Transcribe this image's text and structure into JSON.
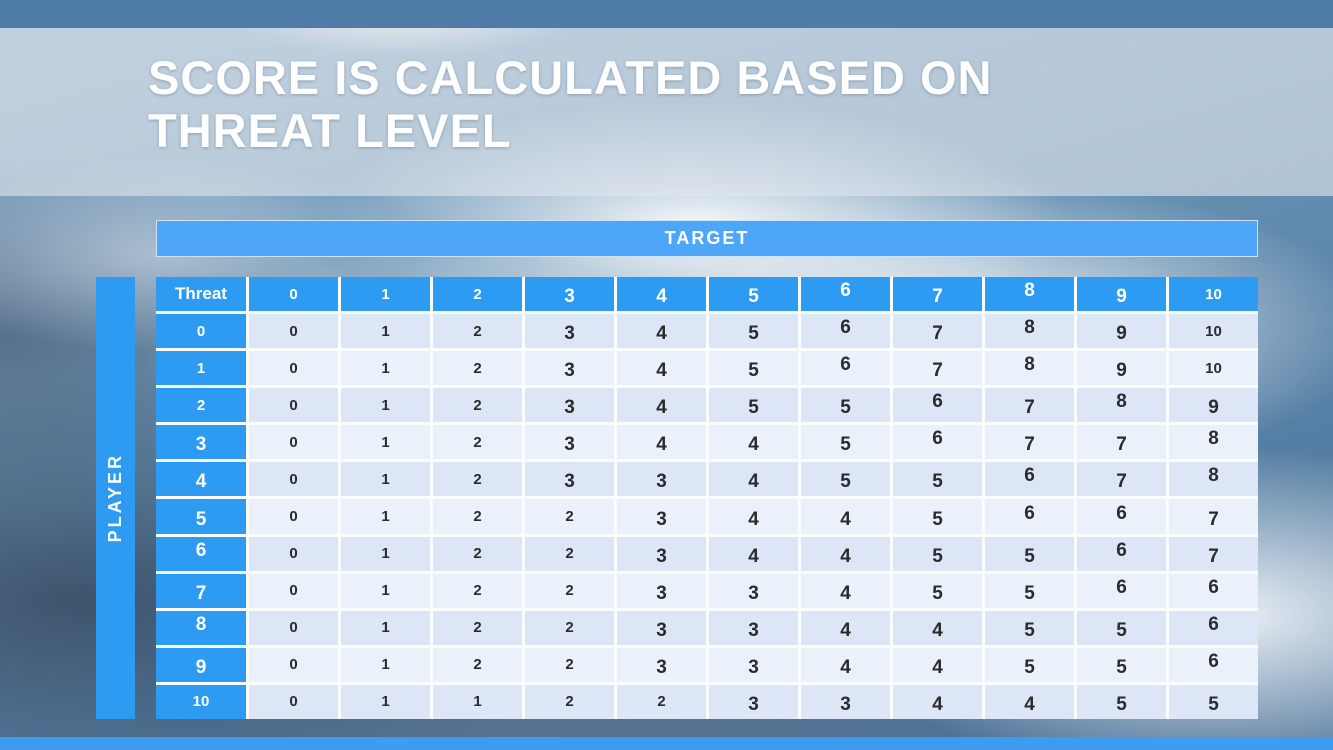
{
  "slide": {
    "title_line1": "SCORE IS CALCULATED BASED ON",
    "title_line2": "THREAT LEVEL"
  },
  "matrix": {
    "target_label": "TARGET",
    "player_label": "PLAYER",
    "corner_label": "Threat",
    "column_headers": [
      "0",
      "1",
      "2",
      "3",
      "4",
      "5",
      "6",
      "7",
      "8",
      "9",
      "10"
    ],
    "rows": [
      {
        "label": "0",
        "values": [
          "0",
          "1",
          "2",
          "3",
          "4",
          "5",
          "6",
          "7",
          "8",
          "9",
          "10"
        ]
      },
      {
        "label": "1",
        "values": [
          "0",
          "1",
          "2",
          "3",
          "4",
          "5",
          "6",
          "7",
          "8",
          "9",
          "10"
        ]
      },
      {
        "label": "2",
        "values": [
          "0",
          "1",
          "2",
          "3",
          "4",
          "5",
          "5",
          "6",
          "7",
          "8",
          "9"
        ]
      },
      {
        "label": "3",
        "values": [
          "0",
          "1",
          "2",
          "3",
          "4",
          "4",
          "5",
          "6",
          "7",
          "7",
          "8"
        ]
      },
      {
        "label": "4",
        "values": [
          "0",
          "1",
          "2",
          "3",
          "3",
          "4",
          "5",
          "5",
          "6",
          "7",
          "8"
        ]
      },
      {
        "label": "5",
        "values": [
          "0",
          "1",
          "2",
          "2",
          "3",
          "4",
          "4",
          "5",
          "6",
          "6",
          "7"
        ]
      },
      {
        "label": "6",
        "values": [
          "0",
          "1",
          "2",
          "2",
          "3",
          "4",
          "4",
          "5",
          "5",
          "6",
          "7"
        ]
      },
      {
        "label": "7",
        "values": [
          "0",
          "1",
          "2",
          "2",
          "3",
          "3",
          "4",
          "5",
          "5",
          "6",
          "6"
        ]
      },
      {
        "label": "8",
        "values": [
          "0",
          "1",
          "2",
          "2",
          "3",
          "3",
          "4",
          "4",
          "5",
          "5",
          "6"
        ]
      },
      {
        "label": "9",
        "values": [
          "0",
          "1",
          "2",
          "2",
          "3",
          "3",
          "4",
          "4",
          "5",
          "5",
          "6"
        ]
      },
      {
        "label": "10",
        "values": [
          "0",
          "1",
          "1",
          "2",
          "2",
          "3",
          "3",
          "4",
          "4",
          "5",
          "5"
        ]
      }
    ]
  },
  "colors": {
    "header_cell_blue": "#2e9bf3",
    "target_bar_blue": "#4da6f7",
    "top_strip_blue": "#4e7ca6",
    "bottom_strip_blue": "#3d9cf0",
    "row_shade_dark": "#dce6f7",
    "row_shade_light": "#ebf1fb",
    "title_text": "#ffffff"
  }
}
